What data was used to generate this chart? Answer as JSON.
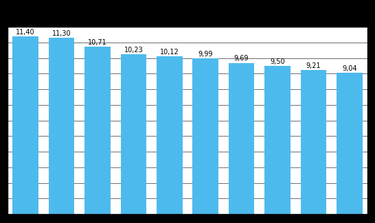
{
  "values": [
    11.4,
    11.3,
    10.71,
    10.23,
    10.12,
    9.99,
    9.69,
    9.5,
    9.21,
    9.04
  ],
  "labels": [
    "11,40",
    "11,30",
    "10,71",
    "10,23",
    "10,12",
    "9,99",
    "9,69",
    "9,50",
    "9,21",
    "9,04"
  ],
  "bar_color": "#4DBAEE",
  "figure_bg_color": "#000000",
  "axes_bg_color": "#ffffff",
  "ylim": [
    0,
    12.0
  ],
  "yticks": [
    0,
    1,
    2,
    3,
    4,
    5,
    6,
    7,
    8,
    9,
    10,
    11,
    12
  ],
  "grid_color": "#333333",
  "bar_label_fontsize": 7,
  "bar_label_color": "#000000",
  "bar_width": 0.72
}
